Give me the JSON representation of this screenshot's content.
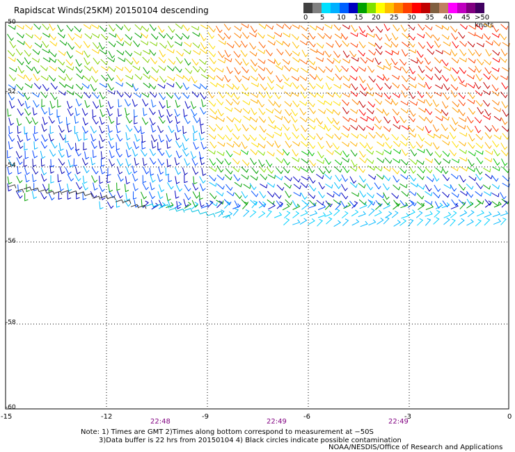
{
  "title": "Rapidscat Winds(25KM) 20150104 descending",
  "legend": {
    "labels": [
      "0",
      "5",
      "10",
      "15",
      "20",
      "25",
      "30",
      "35",
      "40",
      "45",
      ">50 knots"
    ],
    "colors": [
      "#404040",
      "#808080",
      "#00e0ff",
      "#00b0ff",
      "#0060ff",
      "#0000c0",
      "#00a000",
      "#80e000",
      "#ffff00",
      "#ffc000",
      "#ff8000",
      "#ff4000",
      "#ff0000",
      "#c00000",
      "#806040",
      "#c08060",
      "#ff00ff",
      "#c000c0",
      "#800080",
      "#400060"
    ]
  },
  "map": {
    "lat_labels": [
      "-50",
      "-52",
      "-54",
      "-56",
      "-58",
      "-60"
    ],
    "lon_labels": [
      "-15",
      "-12",
      "-9",
      "-6",
      "-3",
      "0"
    ],
    "time_labels": [
      "22:48",
      "22:49",
      "22:49"
    ],
    "lat_range": [
      -60,
      -50
    ],
    "lon_range": [
      -15,
      0
    ]
  },
  "note_line1": "Note: 1) Times are GMT 2)Times along bottom correspond to measurement at −50S",
  "note_line2": "3)Data buffer is 22 hrs from 20150104 4) Black circles indicate possible contamination",
  "credit": "NOAA/NESDIS/Office of Research and Applications"
}
